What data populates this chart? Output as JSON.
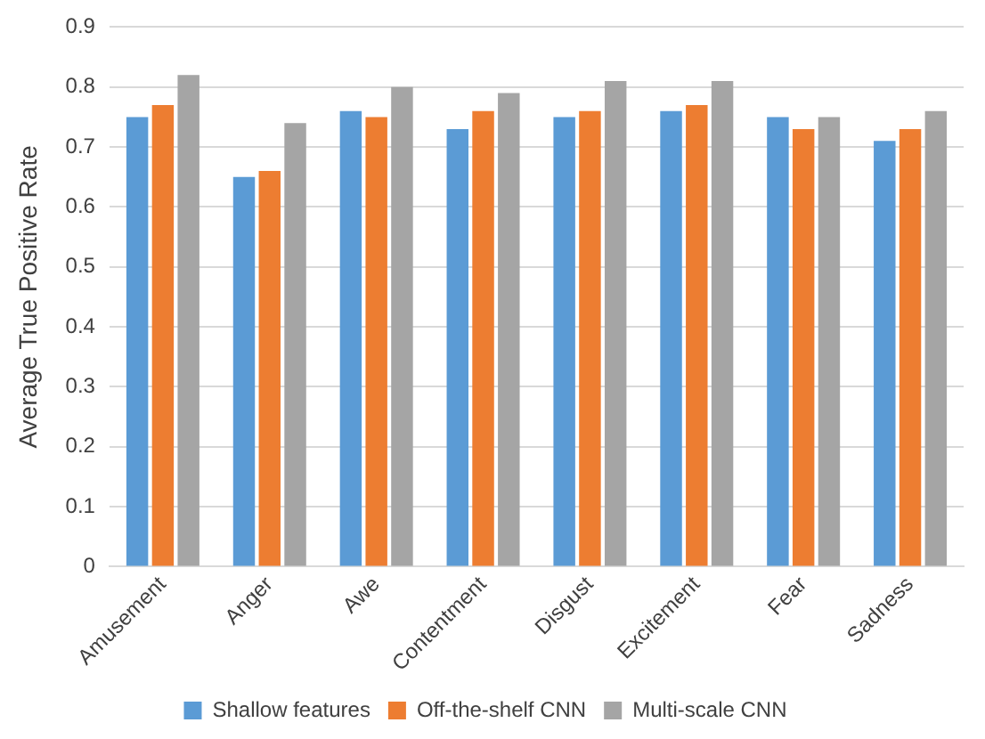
{
  "chart_data": {
    "type": "bar",
    "ylabel": "Average True Positive Rate",
    "categories": [
      "Amusement",
      "Anger",
      "Awe",
      "Contentment",
      "Disgust",
      "Excitement",
      "Fear",
      "Sadness"
    ],
    "series": [
      {
        "name": "Shallow features",
        "color": "#5b9bd5",
        "values": [
          0.75,
          0.65,
          0.76,
          0.73,
          0.75,
          0.76,
          0.75,
          0.71
        ]
      },
      {
        "name": "Off-the-shelf CNN",
        "color": "#ed7d31",
        "values": [
          0.77,
          0.66,
          0.75,
          0.76,
          0.76,
          0.77,
          0.73,
          0.73
        ]
      },
      {
        "name": "Multi-scale CNN",
        "color": "#a5a5a5",
        "values": [
          0.82,
          0.74,
          0.8,
          0.79,
          0.81,
          0.81,
          0.75,
          0.76
        ]
      }
    ],
    "ylim": [
      0,
      0.9
    ],
    "yticks": [
      0,
      0.1,
      0.2,
      0.3,
      0.4,
      0.5,
      0.6,
      0.7,
      0.8,
      0.9
    ],
    "grid": "y",
    "legend": "bottom"
  }
}
